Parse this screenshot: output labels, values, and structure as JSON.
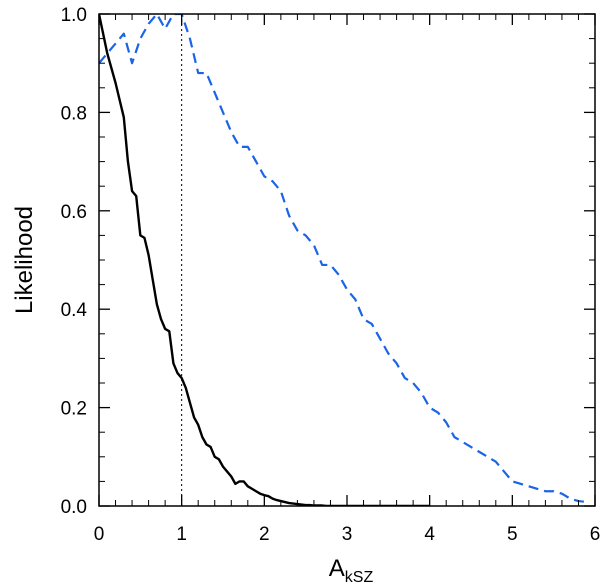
{
  "chart_data": {
    "type": "line",
    "title": "",
    "xlabel_main": "A",
    "xlabel_sub": "kSZ",
    "ylabel": "Likelihood",
    "xlim": [
      0,
      6
    ],
    "ylim": [
      0,
      1
    ],
    "xticks": [
      0,
      1,
      2,
      3,
      4,
      5,
      6
    ],
    "xtick_labels": [
      "0",
      "1",
      "2",
      "3",
      "4",
      "5",
      "6"
    ],
    "yticks": [
      0,
      0.2,
      0.4,
      0.6,
      0.8,
      1.0
    ],
    "ytick_labels": [
      "0.0",
      "0.2",
      "0.4",
      "0.6",
      "0.8",
      "1.0"
    ],
    "grid": false,
    "legend": "none",
    "reference_line": {
      "x": 1,
      "style": "dotted",
      "color": "#000000"
    },
    "series": [
      {
        "style": "solid",
        "color": "#000000",
        "x": [
          0.0,
          0.1,
          0.2,
          0.3,
          0.35,
          0.4,
          0.45,
          0.5,
          0.55,
          0.6,
          0.65,
          0.7,
          0.75,
          0.8,
          0.85,
          0.9,
          0.95,
          1.0,
          1.05,
          1.1,
          1.15,
          1.2,
          1.25,
          1.3,
          1.35,
          1.4,
          1.45,
          1.5,
          1.55,
          1.6,
          1.65,
          1.7,
          1.75,
          1.8,
          1.85,
          1.9,
          1.95,
          2.0,
          2.05,
          2.1,
          2.15,
          2.2,
          2.25,
          2.3,
          2.35,
          2.4,
          2.45,
          2.5,
          2.55,
          2.6,
          2.65,
          2.7,
          2.75,
          2.8,
          2.9,
          3.0,
          3.2,
          3.5,
          3.8,
          4.0
        ],
        "y": [
          1.0,
          0.92,
          0.86,
          0.79,
          0.7,
          0.64,
          0.63,
          0.55,
          0.545,
          0.51,
          0.46,
          0.41,
          0.38,
          0.36,
          0.355,
          0.29,
          0.27,
          0.26,
          0.24,
          0.21,
          0.18,
          0.165,
          0.14,
          0.125,
          0.12,
          0.1,
          0.095,
          0.08,
          0.07,
          0.06,
          0.045,
          0.05,
          0.05,
          0.04,
          0.035,
          0.03,
          0.025,
          0.022,
          0.02,
          0.015,
          0.012,
          0.01,
          0.008,
          0.006,
          0.005,
          0.004,
          0.003,
          0.002,
          0.002,
          0.001,
          0.001,
          0.001,
          0.0,
          0.0,
          0.0,
          0.0,
          0.0,
          0.0,
          0.0,
          0.0
        ]
      },
      {
        "style": "dashed",
        "color": "#1a64e6",
        "x": [
          0.0,
          0.1,
          0.2,
          0.3,
          0.4,
          0.5,
          0.6,
          0.7,
          0.8,
          0.9,
          1.0,
          1.1,
          1.2,
          1.3,
          1.4,
          1.5,
          1.6,
          1.7,
          1.8,
          1.9,
          2.0,
          2.1,
          2.2,
          2.3,
          2.4,
          2.5,
          2.6,
          2.7,
          2.8,
          2.9,
          3.0,
          3.1,
          3.2,
          3.3,
          3.4,
          3.5,
          3.6,
          3.7,
          3.8,
          3.9,
          4.0,
          4.1,
          4.2,
          4.3,
          4.4,
          4.5,
          4.6,
          4.7,
          4.8,
          4.9,
          5.0,
          5.1,
          5.2,
          5.3,
          5.4,
          5.5,
          5.6,
          5.7,
          5.8,
          5.9
        ],
        "y": [
          0.9,
          0.92,
          0.94,
          0.96,
          0.9,
          0.95,
          0.98,
          1.0,
          0.97,
          1.0,
          1.0,
          0.95,
          0.88,
          0.88,
          0.84,
          0.8,
          0.76,
          0.73,
          0.73,
          0.7,
          0.67,
          0.66,
          0.64,
          0.59,
          0.56,
          0.55,
          0.53,
          0.49,
          0.49,
          0.47,
          0.44,
          0.42,
          0.38,
          0.37,
          0.34,
          0.31,
          0.29,
          0.26,
          0.25,
          0.23,
          0.2,
          0.19,
          0.17,
          0.14,
          0.13,
          0.12,
          0.11,
          0.1,
          0.09,
          0.07,
          0.05,
          0.045,
          0.04,
          0.035,
          0.03,
          0.03,
          0.025,
          0.015,
          0.01,
          0.008
        ]
      }
    ]
  }
}
